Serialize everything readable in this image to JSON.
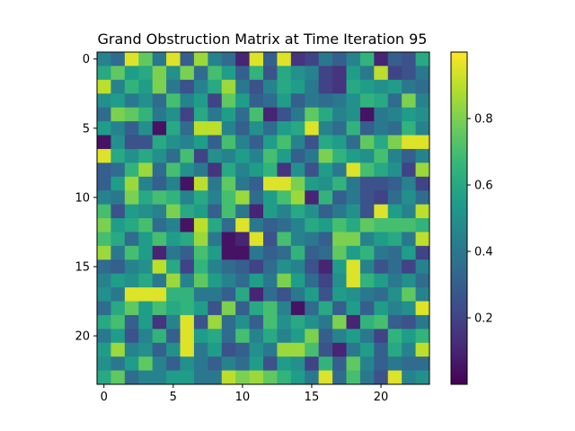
{
  "chart_data": {
    "type": "heatmap",
    "title": "Grand Obstruction Matrix at Time Iteration 95",
    "xlabel": "",
    "ylabel": "",
    "colormap": "viridis",
    "rows": 24,
    "cols": 24,
    "xlim": [
      -0.5,
      23.5
    ],
    "ylim": [
      23.5,
      -0.5
    ],
    "x_ticks": [
      0,
      5,
      10,
      15,
      20
    ],
    "y_ticks": [
      0,
      5,
      10,
      15,
      20
    ],
    "colorbar": {
      "range": [
        0.0,
        1.0
      ],
      "ticks": [
        0.2,
        0.4,
        0.6,
        0.8
      ]
    },
    "values": [
      [
        0.45,
        0.35,
        0.95,
        0.75,
        0.4,
        0.95,
        0.3,
        0.85,
        0.45,
        0.35,
        0.1,
        0.95,
        0.3,
        0.95,
        0.15,
        0.2,
        0.4,
        0.3,
        0.45,
        0.65,
        0.1,
        0.3,
        0.25,
        0.6
      ],
      [
        0.6,
        0.75,
        0.55,
        0.6,
        0.8,
        0.5,
        0.8,
        0.35,
        0.7,
        0.55,
        0.3,
        0.65,
        0.25,
        0.6,
        0.5,
        0.45,
        0.2,
        0.15,
        0.55,
        0.4,
        0.9,
        0.2,
        0.25,
        0.4
      ],
      [
        0.9,
        0.45,
        0.65,
        0.55,
        0.8,
        0.4,
        0.25,
        0.45,
        0.6,
        0.85,
        0.4,
        0.25,
        0.45,
        0.6,
        0.55,
        0.4,
        0.2,
        0.15,
        0.6,
        0.55,
        0.5,
        0.55,
        0.4,
        0.35
      ],
      [
        0.5,
        0.55,
        0.4,
        0.5,
        0.35,
        0.7,
        0.45,
        0.55,
        0.2,
        0.75,
        0.55,
        0.3,
        0.35,
        0.55,
        0.3,
        0.4,
        0.35,
        0.4,
        0.5,
        0.65,
        0.6,
        0.35,
        0.8,
        0.45
      ],
      [
        0.35,
        0.8,
        0.75,
        0.65,
        0.4,
        0.5,
        0.2,
        0.6,
        0.4,
        0.55,
        0.35,
        0.7,
        0.1,
        0.25,
        0.4,
        0.75,
        0.6,
        0.45,
        0.5,
        0.05,
        0.4,
        0.45,
        0.55,
        0.5
      ],
      [
        0.55,
        0.45,
        0.3,
        0.5,
        0.05,
        0.6,
        0.35,
        0.9,
        0.9,
        0.45,
        0.3,
        0.5,
        0.35,
        0.55,
        0.6,
        0.95,
        0.45,
        0.35,
        0.65,
        0.3,
        0.4,
        0.35,
        0.65,
        0.45
      ],
      [
        0.05,
        0.5,
        0.25,
        0.25,
        0.6,
        0.5,
        0.45,
        0.55,
        0.3,
        0.7,
        0.45,
        0.3,
        0.55,
        0.7,
        0.45,
        0.25,
        0.6,
        0.55,
        0.35,
        0.75,
        0.6,
        0.8,
        0.95,
        0.95
      ],
      [
        0.95,
        0.6,
        0.5,
        0.6,
        0.5,
        0.35,
        0.7,
        0.2,
        0.5,
        0.45,
        0.55,
        0.45,
        0.7,
        0.55,
        0.3,
        0.4,
        0.8,
        0.65,
        0.55,
        0.5,
        0.7,
        0.45,
        0.3,
        0.45
      ],
      [
        0.3,
        0.35,
        0.65,
        0.85,
        0.35,
        0.7,
        0.5,
        0.4,
        0.15,
        0.6,
        0.45,
        0.55,
        0.65,
        0.15,
        0.5,
        0.25,
        0.55,
        0.4,
        0.95,
        0.7,
        0.6,
        0.5,
        0.2,
        0.85
      ],
      [
        0.3,
        0.55,
        0.85,
        0.45,
        0.3,
        0.45,
        0.05,
        0.9,
        0.4,
        0.75,
        0.4,
        0.3,
        0.95,
        0.95,
        0.8,
        0.55,
        0.5,
        0.65,
        0.4,
        0.25,
        0.25,
        0.3,
        0.45,
        0.2
      ],
      [
        0.45,
        0.4,
        0.8,
        0.6,
        0.7,
        0.65,
        0.45,
        0.6,
        0.45,
        0.7,
        0.85,
        0.35,
        0.55,
        0.7,
        0.85,
        0.1,
        0.65,
        0.3,
        0.4,
        0.25,
        0.2,
        0.35,
        0.5,
        0.35
      ],
      [
        0.7,
        0.25,
        0.55,
        0.5,
        0.45,
        0.8,
        0.6,
        0.55,
        0.3,
        0.7,
        0.4,
        0.1,
        0.55,
        0.45,
        0.6,
        0.5,
        0.3,
        0.4,
        0.5,
        0.25,
        0.95,
        0.55,
        0.45,
        0.9
      ],
      [
        0.8,
        0.55,
        0.6,
        0.7,
        0.35,
        0.45,
        0.05,
        0.9,
        0.6,
        0.35,
        0.95,
        0.4,
        0.3,
        0.35,
        0.45,
        0.6,
        0.55,
        0.7,
        0.6,
        0.75,
        0.7,
        0.7,
        0.7,
        0.65
      ],
      [
        0.7,
        0.6,
        0.35,
        0.55,
        0.7,
        0.55,
        0.6,
        0.85,
        0.4,
        0.05,
        0.1,
        0.95,
        0.25,
        0.7,
        0.45,
        0.4,
        0.3,
        0.8,
        0.8,
        0.45,
        0.55,
        0.6,
        0.4,
        0.9
      ],
      [
        0.85,
        0.4,
        0.7,
        0.55,
        0.1,
        0.4,
        0.3,
        0.7,
        0.55,
        0.05,
        0.05,
        0.4,
        0.3,
        0.35,
        0.65,
        0.3,
        0.35,
        0.75,
        0.55,
        0.65,
        0.4,
        0.35,
        0.55,
        0.2
      ],
      [
        0.35,
        0.3,
        0.45,
        0.5,
        0.9,
        0.6,
        0.2,
        0.65,
        0.45,
        0.35,
        0.3,
        0.2,
        0.35,
        0.5,
        0.45,
        0.25,
        0.1,
        0.55,
        0.95,
        0.45,
        0.25,
        0.35,
        0.2,
        0.45
      ],
      [
        0.45,
        0.55,
        0.5,
        0.6,
        0.4,
        0.85,
        0.45,
        0.75,
        0.55,
        0.45,
        0.35,
        0.55,
        0.4,
        0.8,
        0.55,
        0.35,
        0.2,
        0.5,
        0.95,
        0.65,
        0.55,
        0.4,
        0.5,
        0.35
      ],
      [
        0.5,
        0.4,
        0.95,
        0.95,
        0.95,
        0.65,
        0.65,
        0.4,
        0.4,
        0.3,
        0.6,
        0.1,
        0.35,
        0.25,
        0.4,
        0.55,
        0.25,
        0.55,
        0.5,
        0.4,
        0.35,
        0.5,
        0.75,
        0.45
      ],
      [
        0.35,
        0.6,
        0.75,
        0.55,
        0.7,
        0.6,
        0.65,
        0.55,
        0.25,
        0.8,
        0.3,
        0.6,
        0.7,
        0.45,
        0.05,
        0.35,
        0.6,
        0.3,
        0.55,
        0.3,
        0.55,
        0.45,
        0.5,
        0.95
      ],
      [
        0.6,
        0.7,
        0.3,
        0.55,
        0.15,
        0.45,
        0.95,
        0.25,
        0.85,
        0.35,
        0.5,
        0.3,
        0.7,
        0.5,
        0.6,
        0.5,
        0.4,
        0.8,
        0.1,
        0.65,
        0.7,
        0.3,
        0.25,
        0.4
      ],
      [
        0.4,
        0.55,
        0.25,
        0.45,
        0.65,
        0.3,
        0.95,
        0.55,
        0.6,
        0.35,
        0.7,
        0.45,
        0.6,
        0.45,
        0.55,
        0.8,
        0.3,
        0.45,
        0.55,
        0.4,
        0.2,
        0.65,
        0.55,
        0.65
      ],
      [
        0.55,
        0.85,
        0.45,
        0.5,
        0.3,
        0.5,
        0.95,
        0.4,
        0.55,
        0.25,
        0.3,
        0.5,
        0.4,
        0.85,
        0.85,
        0.7,
        0.25,
        0.1,
        0.4,
        0.55,
        0.3,
        0.6,
        0.45,
        0.9
      ],
      [
        0.5,
        0.4,
        0.55,
        0.75,
        0.45,
        0.3,
        0.5,
        0.4,
        0.3,
        0.45,
        0.35,
        0.55,
        0.25,
        0.55,
        0.5,
        0.2,
        0.65,
        0.3,
        0.75,
        0.45,
        0.3,
        0.4,
        0.35,
        0.35
      ],
      [
        0.6,
        0.75,
        0.35,
        0.45,
        0.45,
        0.55,
        0.55,
        0.4,
        0.4,
        0.9,
        0.8,
        0.85,
        0.75,
        0.65,
        0.55,
        0.4,
        0.95,
        0.35,
        0.7,
        0.4,
        0.25,
        0.95,
        0.45,
        0.5
      ]
    ]
  }
}
